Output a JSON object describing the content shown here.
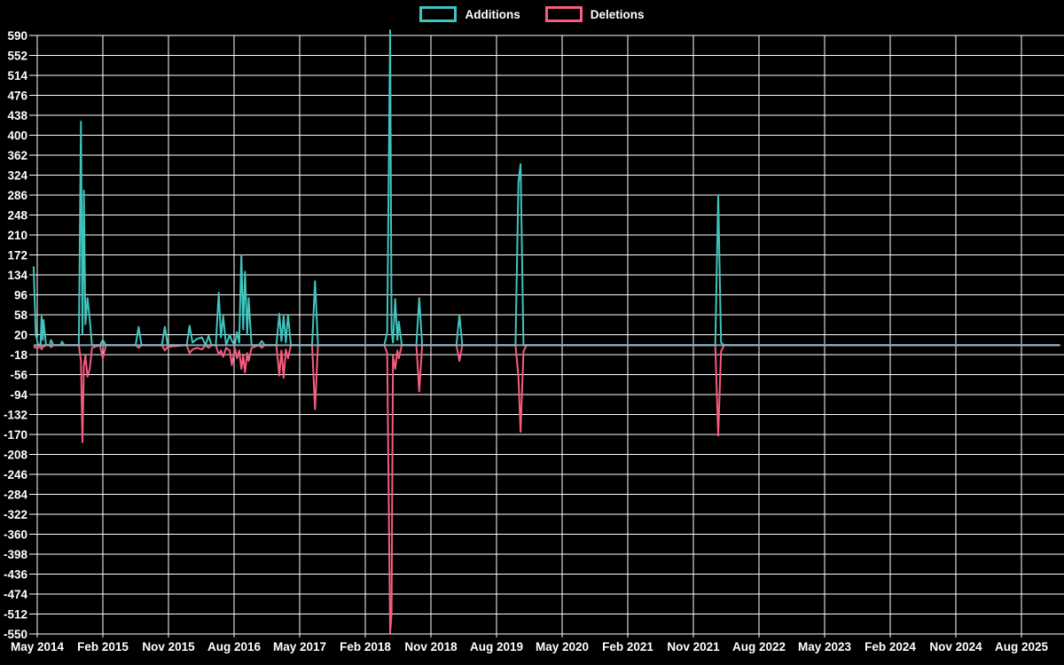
{
  "chart": {
    "background_color": "#000000",
    "grid_color": "#ffffff",
    "text_color": "#ffffff",
    "baseline_color": "#8fafbb",
    "legend": [
      {
        "label": "Additions",
        "color": "#40c4be"
      },
      {
        "label": "Deletions",
        "color": "#f85c80"
      }
    ]
  },
  "chart_data": {
    "type": "line",
    "title": "",
    "xlabel": "",
    "ylabel": "",
    "legend_position": "top-center",
    "grid": true,
    "x_axis": {
      "labels": [
        "May 2014",
        "Feb 2015",
        "Nov 2015",
        "Aug 2016",
        "May 2017",
        "Feb 2018",
        "Nov 2018",
        "Aug 2019",
        "May 2020",
        "Feb 2021",
        "Nov 2021",
        "Aug 2022",
        "May 2023",
        "Feb 2024",
        "Nov 2024",
        "Aug 2025"
      ],
      "months_between_ticks": 9,
      "epoch_label": "May 2014"
    },
    "y_axis": {
      "max": 590,
      "min": -550,
      "step": 38,
      "ticks": [
        590,
        552,
        514,
        476,
        438,
        400,
        362,
        324,
        286,
        248,
        210,
        172,
        134,
        96,
        58,
        20,
        -18,
        -56,
        -94,
        -132,
        -170,
        -208,
        -246,
        -284,
        -322,
        -360,
        -398,
        -436,
        -474,
        -512,
        -550
      ]
    },
    "series": [
      {
        "name": "Additions",
        "color": "#40c4be",
        "point_index": 1
      },
      {
        "name": "Deletions",
        "color": "#f85c80",
        "point_index": 2
      }
    ],
    "points_format": "[months_after_May_2014, additions, deletions]",
    "points": [
      [
        -0.5,
        150,
        -2
      ],
      [
        -0.2,
        20,
        -5
      ],
      [
        0.1,
        2,
        -5
      ],
      [
        0.45,
        0,
        -2
      ],
      [
        0.6,
        55,
        -8
      ],
      [
        0.75,
        10,
        -3
      ],
      [
        0.85,
        48,
        -3
      ],
      [
        1.2,
        0,
        0
      ],
      [
        1.7,
        0,
        0
      ],
      [
        1.9,
        10,
        -4
      ],
      [
        2.2,
        0,
        0
      ],
      [
        3.2,
        0,
        0
      ],
      [
        3.4,
        7,
        0
      ],
      [
        3.7,
        0,
        0
      ],
      [
        5.7,
        0,
        0
      ],
      [
        6.0,
        426,
        -30
      ],
      [
        6.2,
        20,
        -185
      ],
      [
        6.4,
        295,
        -40
      ],
      [
        6.6,
        40,
        -20
      ],
      [
        6.9,
        90,
        -60
      ],
      [
        7.2,
        50,
        -45
      ],
      [
        7.5,
        0,
        -5
      ],
      [
        8.6,
        0,
        0
      ],
      [
        9.0,
        10,
        -25
      ],
      [
        9.4,
        0,
        0
      ],
      [
        13.5,
        0,
        0
      ],
      [
        13.9,
        35,
        -5
      ],
      [
        14.3,
        0,
        0
      ],
      [
        17.1,
        0,
        0
      ],
      [
        17.5,
        35,
        -10
      ],
      [
        17.9,
        0,
        -3
      ],
      [
        20.5,
        0,
        0
      ],
      [
        20.9,
        37,
        -15
      ],
      [
        21.3,
        5,
        -8
      ],
      [
        21.9,
        12,
        -5
      ],
      [
        22.6,
        15,
        -8
      ],
      [
        23.1,
        0,
        0
      ],
      [
        23.5,
        18,
        -5
      ],
      [
        23.9,
        0,
        0
      ],
      [
        24.5,
        0,
        0
      ],
      [
        24.9,
        100,
        -18
      ],
      [
        25.2,
        15,
        -10
      ],
      [
        25.5,
        55,
        -22
      ],
      [
        25.9,
        0,
        -5
      ],
      [
        26.4,
        20,
        -10
      ],
      [
        26.7,
        8,
        -38
      ],
      [
        27.1,
        0,
        -5
      ],
      [
        27.4,
        25,
        -25
      ],
      [
        27.7,
        5,
        -10
      ],
      [
        28.0,
        172,
        -45
      ],
      [
        28.25,
        30,
        -20
      ],
      [
        28.5,
        140,
        -52
      ],
      [
        28.8,
        20,
        -15
      ],
      [
        29.0,
        90,
        -30
      ],
      [
        29.4,
        0,
        -5
      ],
      [
        30.4,
        0,
        0
      ],
      [
        30.8,
        8,
        -5
      ],
      [
        31.2,
        0,
        0
      ],
      [
        32.8,
        0,
        0
      ],
      [
        33.2,
        60,
        -58
      ],
      [
        33.5,
        8,
        -10
      ],
      [
        33.8,
        55,
        -62
      ],
      [
        34.1,
        5,
        -8
      ],
      [
        34.4,
        58,
        -25
      ],
      [
        34.8,
        0,
        0
      ],
      [
        37.7,
        0,
        0
      ],
      [
        38.1,
        122,
        -122
      ],
      [
        38.5,
        0,
        0
      ],
      [
        47.6,
        0,
        0
      ],
      [
        48.0,
        25,
        -15
      ],
      [
        48.4,
        600,
        -548
      ],
      [
        48.6,
        30,
        -512
      ],
      [
        48.8,
        5,
        -20
      ],
      [
        49.1,
        88,
        -45
      ],
      [
        49.4,
        10,
        -10
      ],
      [
        49.6,
        45,
        -25
      ],
      [
        50.0,
        0,
        0
      ],
      [
        52.0,
        0,
        0
      ],
      [
        52.4,
        90,
        -88
      ],
      [
        52.8,
        0,
        0
      ],
      [
        57.5,
        0,
        0
      ],
      [
        57.9,
        58,
        -30
      ],
      [
        58.3,
        0,
        0
      ],
      [
        65.6,
        0,
        0
      ],
      [
        66.0,
        310,
        -60
      ],
      [
        66.3,
        345,
        -165
      ],
      [
        66.7,
        0,
        -12
      ],
      [
        67.1,
        0,
        0
      ],
      [
        93.0,
        0,
        0
      ],
      [
        93.4,
        286,
        -172
      ],
      [
        93.8,
        5,
        -12
      ],
      [
        94.2,
        0,
        0
      ],
      [
        140.3,
        0,
        0
      ]
    ]
  }
}
